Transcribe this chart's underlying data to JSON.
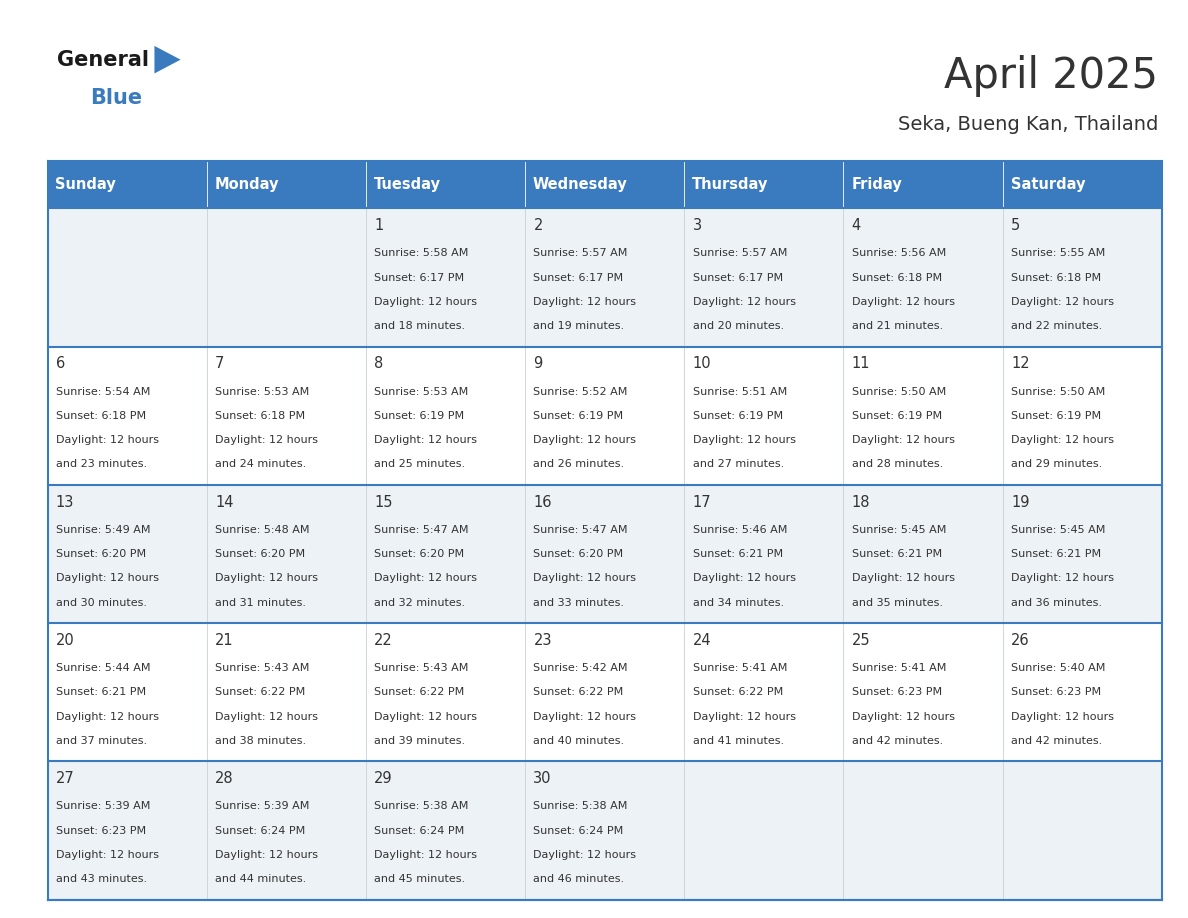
{
  "title": "April 2025",
  "subtitle": "Seka, Bueng Kan, Thailand",
  "header_bg": "#3a7bbf",
  "header_text_color": "#ffffff",
  "days_of_week": [
    "Sunday",
    "Monday",
    "Tuesday",
    "Wednesday",
    "Thursday",
    "Friday",
    "Saturday"
  ],
  "row_bg_even": "#edf2f7",
  "row_bg_odd": "#ffffff",
  "cell_border_color": "#3a7bbf",
  "text_color": "#333333",
  "calendar_data": [
    [
      {
        "day": "",
        "sunrise": "",
        "sunset": "",
        "daylight": ""
      },
      {
        "day": "",
        "sunrise": "",
        "sunset": "",
        "daylight": ""
      },
      {
        "day": "1",
        "sunrise": "5:58 AM",
        "sunset": "6:17 PM",
        "daylight": "12 hours",
        "daylight2": "and 18 minutes."
      },
      {
        "day": "2",
        "sunrise": "5:57 AM",
        "sunset": "6:17 PM",
        "daylight": "12 hours",
        "daylight2": "and 19 minutes."
      },
      {
        "day": "3",
        "sunrise": "5:57 AM",
        "sunset": "6:17 PM",
        "daylight": "12 hours",
        "daylight2": "and 20 minutes."
      },
      {
        "day": "4",
        "sunrise": "5:56 AM",
        "sunset": "6:18 PM",
        "daylight": "12 hours",
        "daylight2": "and 21 minutes."
      },
      {
        "day": "5",
        "sunrise": "5:55 AM",
        "sunset": "6:18 PM",
        "daylight": "12 hours",
        "daylight2": "and 22 minutes."
      }
    ],
    [
      {
        "day": "6",
        "sunrise": "5:54 AM",
        "sunset": "6:18 PM",
        "daylight": "12 hours",
        "daylight2": "and 23 minutes."
      },
      {
        "day": "7",
        "sunrise": "5:53 AM",
        "sunset": "6:18 PM",
        "daylight": "12 hours",
        "daylight2": "and 24 minutes."
      },
      {
        "day": "8",
        "sunrise": "5:53 AM",
        "sunset": "6:19 PM",
        "daylight": "12 hours",
        "daylight2": "and 25 minutes."
      },
      {
        "day": "9",
        "sunrise": "5:52 AM",
        "sunset": "6:19 PM",
        "daylight": "12 hours",
        "daylight2": "and 26 minutes."
      },
      {
        "day": "10",
        "sunrise": "5:51 AM",
        "sunset": "6:19 PM",
        "daylight": "12 hours",
        "daylight2": "and 27 minutes."
      },
      {
        "day": "11",
        "sunrise": "5:50 AM",
        "sunset": "6:19 PM",
        "daylight": "12 hours",
        "daylight2": "and 28 minutes."
      },
      {
        "day": "12",
        "sunrise": "5:50 AM",
        "sunset": "6:19 PM",
        "daylight": "12 hours",
        "daylight2": "and 29 minutes."
      }
    ],
    [
      {
        "day": "13",
        "sunrise": "5:49 AM",
        "sunset": "6:20 PM",
        "daylight": "12 hours",
        "daylight2": "and 30 minutes."
      },
      {
        "day": "14",
        "sunrise": "5:48 AM",
        "sunset": "6:20 PM",
        "daylight": "12 hours",
        "daylight2": "and 31 minutes."
      },
      {
        "day": "15",
        "sunrise": "5:47 AM",
        "sunset": "6:20 PM",
        "daylight": "12 hours",
        "daylight2": "and 32 minutes."
      },
      {
        "day": "16",
        "sunrise": "5:47 AM",
        "sunset": "6:20 PM",
        "daylight": "12 hours",
        "daylight2": "and 33 minutes."
      },
      {
        "day": "17",
        "sunrise": "5:46 AM",
        "sunset": "6:21 PM",
        "daylight": "12 hours",
        "daylight2": "and 34 minutes."
      },
      {
        "day": "18",
        "sunrise": "5:45 AM",
        "sunset": "6:21 PM",
        "daylight": "12 hours",
        "daylight2": "and 35 minutes."
      },
      {
        "day": "19",
        "sunrise": "5:45 AM",
        "sunset": "6:21 PM",
        "daylight": "12 hours",
        "daylight2": "and 36 minutes."
      }
    ],
    [
      {
        "day": "20",
        "sunrise": "5:44 AM",
        "sunset": "6:21 PM",
        "daylight": "12 hours",
        "daylight2": "and 37 minutes."
      },
      {
        "day": "21",
        "sunrise": "5:43 AM",
        "sunset": "6:22 PM",
        "daylight": "12 hours",
        "daylight2": "and 38 minutes."
      },
      {
        "day": "22",
        "sunrise": "5:43 AM",
        "sunset": "6:22 PM",
        "daylight": "12 hours",
        "daylight2": "and 39 minutes."
      },
      {
        "day": "23",
        "sunrise": "5:42 AM",
        "sunset": "6:22 PM",
        "daylight": "12 hours",
        "daylight2": "and 40 minutes."
      },
      {
        "day": "24",
        "sunrise": "5:41 AM",
        "sunset": "6:22 PM",
        "daylight": "12 hours",
        "daylight2": "and 41 minutes."
      },
      {
        "day": "25",
        "sunrise": "5:41 AM",
        "sunset": "6:23 PM",
        "daylight": "12 hours",
        "daylight2": "and 42 minutes."
      },
      {
        "day": "26",
        "sunrise": "5:40 AM",
        "sunset": "6:23 PM",
        "daylight": "12 hours",
        "daylight2": "and 42 minutes."
      }
    ],
    [
      {
        "day": "27",
        "sunrise": "5:39 AM",
        "sunset": "6:23 PM",
        "daylight": "12 hours",
        "daylight2": "and 43 minutes."
      },
      {
        "day": "28",
        "sunrise": "5:39 AM",
        "sunset": "6:24 PM",
        "daylight": "12 hours",
        "daylight2": "and 44 minutes."
      },
      {
        "day": "29",
        "sunrise": "5:38 AM",
        "sunset": "6:24 PM",
        "daylight": "12 hours",
        "daylight2": "and 45 minutes."
      },
      {
        "day": "30",
        "sunrise": "5:38 AM",
        "sunset": "6:24 PM",
        "daylight": "12 hours",
        "daylight2": "and 46 minutes."
      },
      {
        "day": "",
        "sunrise": "",
        "sunset": "",
        "daylight": "",
        "daylight2": ""
      },
      {
        "day": "",
        "sunrise": "",
        "sunset": "",
        "daylight": "",
        "daylight2": ""
      },
      {
        "day": "",
        "sunrise": "",
        "sunset": "",
        "daylight": "",
        "daylight2": ""
      }
    ]
  ],
  "logo_text_general": "General",
  "logo_text_blue": "Blue",
  "logo_color_general": "#1a1a1a",
  "logo_color_blue": "#3a7bbf",
  "logo_triangle_color": "#3a7bbf"
}
